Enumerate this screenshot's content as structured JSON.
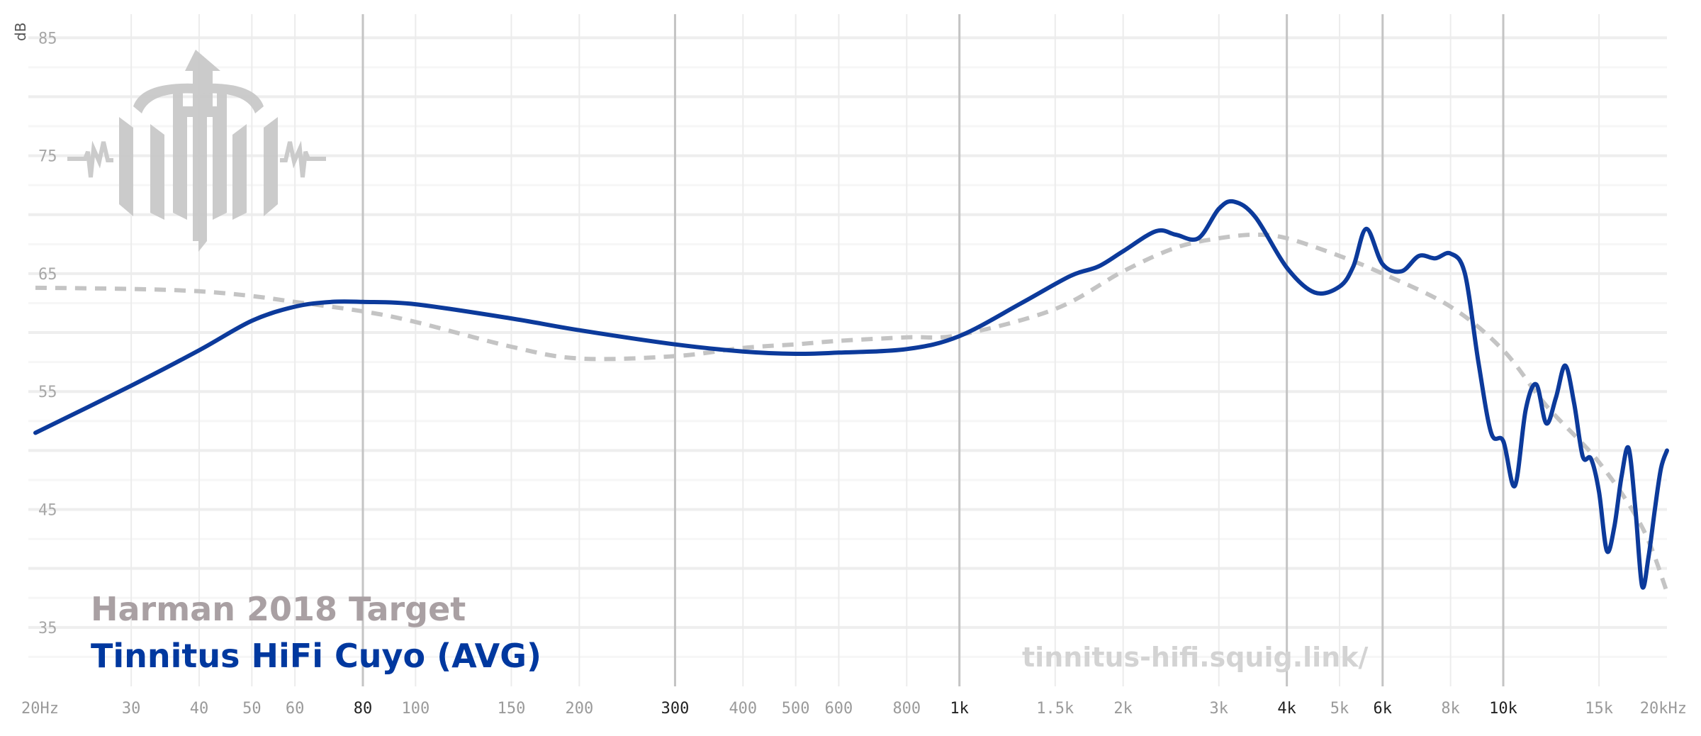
{
  "chart_data": {
    "type": "line",
    "y_unit": "dB",
    "xlim_hz": [
      20,
      20000
    ],
    "ylim_db": [
      30,
      87
    ],
    "x_scale": "log",
    "grid": true,
    "x_ticks": [
      {
        "hz": 20,
        "label": "20Hz",
        "major": false
      },
      {
        "hz": 30,
        "label": "30",
        "major": false
      },
      {
        "hz": 40,
        "label": "40",
        "major": false
      },
      {
        "hz": 50,
        "label": "50",
        "major": false
      },
      {
        "hz": 60,
        "label": "60",
        "major": false
      },
      {
        "hz": 80,
        "label": "80",
        "major": true
      },
      {
        "hz": 100,
        "label": "100",
        "major": false
      },
      {
        "hz": 150,
        "label": "150",
        "major": false
      },
      {
        "hz": 200,
        "label": "200",
        "major": false
      },
      {
        "hz": 300,
        "label": "300",
        "major": true
      },
      {
        "hz": 400,
        "label": "400",
        "major": false
      },
      {
        "hz": 500,
        "label": "500",
        "major": false
      },
      {
        "hz": 600,
        "label": "600",
        "major": false
      },
      {
        "hz": 800,
        "label": "800",
        "major": false
      },
      {
        "hz": 1000,
        "label": "1k",
        "major": true
      },
      {
        "hz": 1500,
        "label": "1.5k",
        "major": false
      },
      {
        "hz": 2000,
        "label": "2k",
        "major": false
      },
      {
        "hz": 3000,
        "label": "3k",
        "major": false
      },
      {
        "hz": 4000,
        "label": "4k",
        "major": true
      },
      {
        "hz": 5000,
        "label": "5k",
        "major": false
      },
      {
        "hz": 6000,
        "label": "6k",
        "major": true
      },
      {
        "hz": 8000,
        "label": "8k",
        "major": false
      },
      {
        "hz": 10000,
        "label": "10k",
        "major": true
      },
      {
        "hz": 15000,
        "label": "15k",
        "major": false
      },
      {
        "hz": 20000,
        "label": "20kHz",
        "major": false
      }
    ],
    "y_ticks": [
      {
        "db": 85,
        "label": "85"
      },
      {
        "db": 75,
        "label": "75"
      },
      {
        "db": 65,
        "label": "65"
      },
      {
        "db": 55,
        "label": "55"
      },
      {
        "db": 45,
        "label": "45"
      },
      {
        "db": 35,
        "label": "35"
      }
    ],
    "series": [
      {
        "name": "Harman 2018 Target",
        "color": "#a9a0a3",
        "line_color": "#c4c4c4",
        "style": "dashed",
        "x": [
          20,
          30,
          40,
          50,
          60,
          80,
          100,
          150,
          200,
          300,
          400,
          500,
          600,
          800,
          1000,
          1500,
          2000,
          2500,
          3000,
          3500,
          4000,
          5000,
          6000,
          8000,
          10000,
          12000,
          15000,
          18000,
          20000
        ],
        "y": [
          63.8,
          63.7,
          63.5,
          63.1,
          62.6,
          61.8,
          60.9,
          58.8,
          57.8,
          58.0,
          58.7,
          59.0,
          59.3,
          59.6,
          59.8,
          62.0,
          65.2,
          67.2,
          68.0,
          68.3,
          68.0,
          66.5,
          65.0,
          62.2,
          58.5,
          53.8,
          49.0,
          43.5,
          38.0
        ]
      },
      {
        "name": "Tinnitus HiFi Cuyo (AVG)",
        "color": "#00389f",
        "line_color": "#0c3a9b",
        "style": "solid",
        "x": [
          20,
          30,
          40,
          50,
          60,
          70,
          80,
          100,
          150,
          200,
          300,
          400,
          500,
          600,
          800,
          1000,
          1300,
          1600,
          1800,
          2000,
          2300,
          2500,
          2750,
          3000,
          3200,
          3500,
          4000,
          4500,
          5000,
          5300,
          5600,
          6000,
          6500,
          7000,
          7500,
          8000,
          8500,
          9000,
          9500,
          10000,
          10500,
          11000,
          11500,
          12000,
          12500,
          13000,
          13500,
          14000,
          14500,
          15000,
          15500,
          16000,
          16500,
          17000,
          17500,
          18000,
          18500,
          19000,
          19500,
          20000
        ],
        "y": [
          51.5,
          55.5,
          58.5,
          61.0,
          62.2,
          62.6,
          62.6,
          62.4,
          61.2,
          60.2,
          59.0,
          58.4,
          58.2,
          58.3,
          58.6,
          59.7,
          62.5,
          64.8,
          65.6,
          66.9,
          68.6,
          68.3,
          68.0,
          70.5,
          71.1,
          69.8,
          65.5,
          63.4,
          63.9,
          65.6,
          68.8,
          65.8,
          65.2,
          66.5,
          66.3,
          66.7,
          65.0,
          57.5,
          51.5,
          50.8,
          47.0,
          53.5,
          55.6,
          52.3,
          54.5,
          57.2,
          54.0,
          49.5,
          49.3,
          46.5,
          41.5,
          43.5,
          47.8,
          50.2,
          45.0,
          38.5,
          41.0,
          45.0,
          48.5,
          50.0
        ]
      }
    ]
  },
  "legend": {
    "target_label": "Harman 2018 Target",
    "target_color": "#a9a0a3",
    "device_label": "Tinnitus HiFi Cuyo (AVG)",
    "device_color": "#00389f"
  },
  "watermark_url": "tinnitus-hifi.squig.link/",
  "logo_icon": "tinnitus-trident-logo"
}
